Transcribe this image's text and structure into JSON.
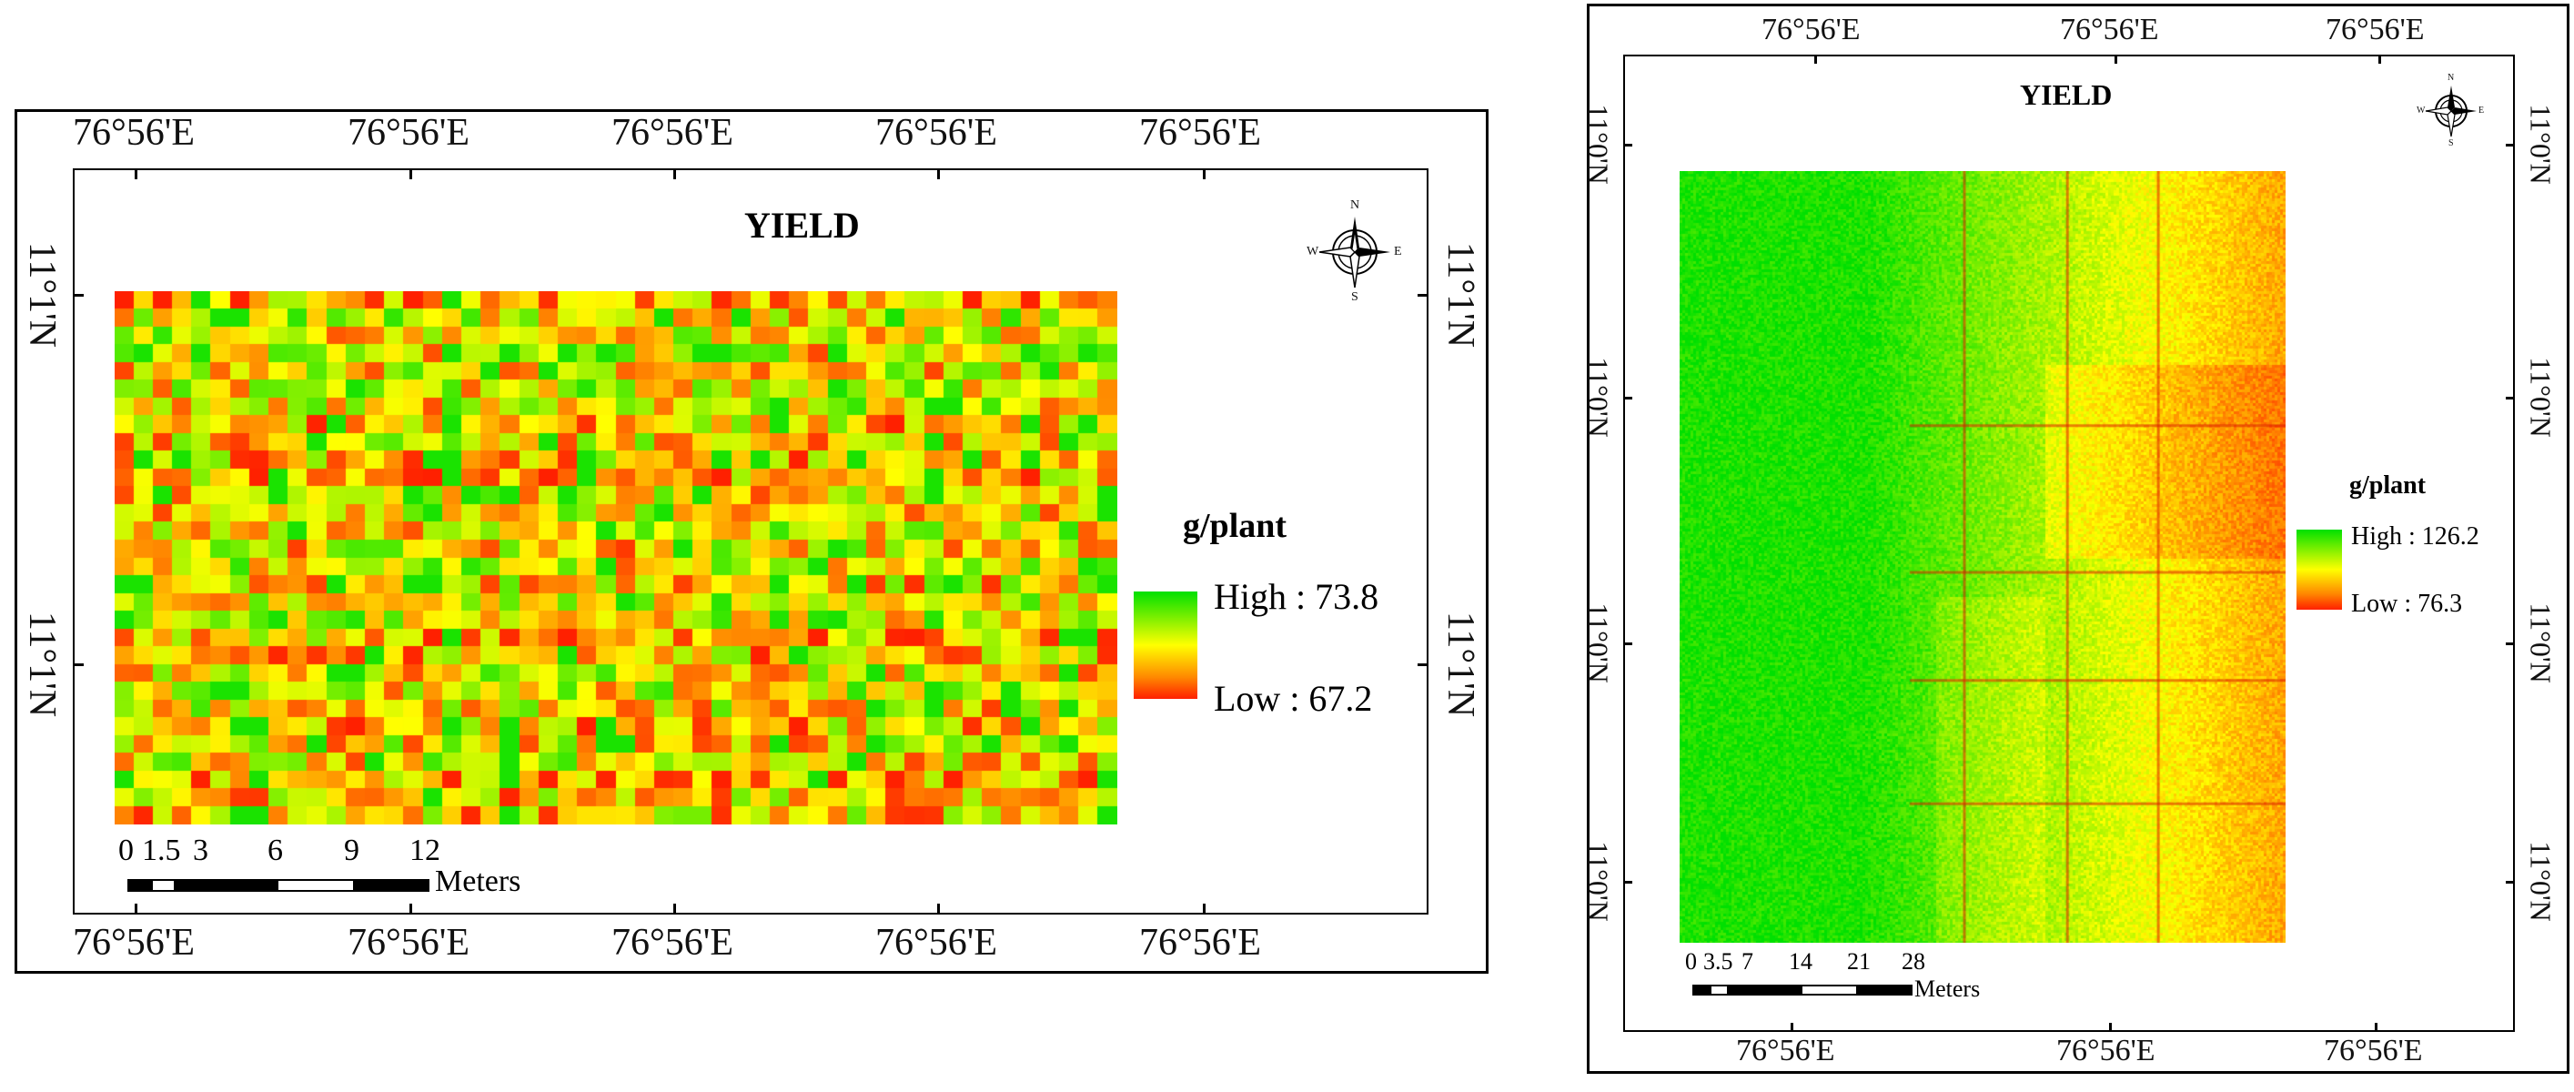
{
  "left_map": {
    "title": "YIELD",
    "top_lon_labels": [
      "76°56'E",
      "76°56'E",
      "76°56'E",
      "76°56'E",
      "76°56'E"
    ],
    "bottom_lon_labels": [
      "76°56'E",
      "76°56'E",
      "76°56'E",
      "76°56'E",
      "76°56'E"
    ],
    "left_lat_labels": [
      "11°1'N",
      "11°1'N"
    ],
    "right_lat_labels": [
      "11°1'N",
      "11°1'N"
    ],
    "legend": {
      "unit": "g/plant",
      "high": "High : 73.8",
      "low": "Low : 67.2",
      "colors": [
        "#00e000",
        "#ffff00",
        "#ff2000"
      ]
    },
    "scale": {
      "ticks": [
        "0",
        "1.5",
        "3",
        "6",
        "9",
        "12"
      ],
      "unit": "Meters"
    },
    "compass": {
      "n": "N",
      "s": "S",
      "e": "E",
      "w": "W"
    }
  },
  "right_map": {
    "title": "YIELD",
    "top_lon_labels": [
      "76°56'E",
      "76°56'E",
      "76°56'E"
    ],
    "bottom_lon_labels": [
      "76°56'E",
      "76°56'E",
      "76°56'E"
    ],
    "left_lat_labels": [
      "11°0'N",
      "11°0'N",
      "11°0'N",
      "11°0'N"
    ],
    "right_lat_labels": [
      "11°0'N",
      "11°0'N",
      "11°0'N",
      "11°0'N"
    ],
    "legend": {
      "unit": "g/plant",
      "high": "High : 126.2",
      "low": "Low : 76.3",
      "colors": [
        "#00e000",
        "#ffff00",
        "#ff2000"
      ]
    },
    "scale": {
      "ticks": [
        "0",
        "3.5",
        "7",
        "14",
        "21",
        "28"
      ],
      "unit": "Meters"
    },
    "compass": {
      "n": "N",
      "s": "S",
      "e": "E",
      "w": "W"
    }
  }
}
